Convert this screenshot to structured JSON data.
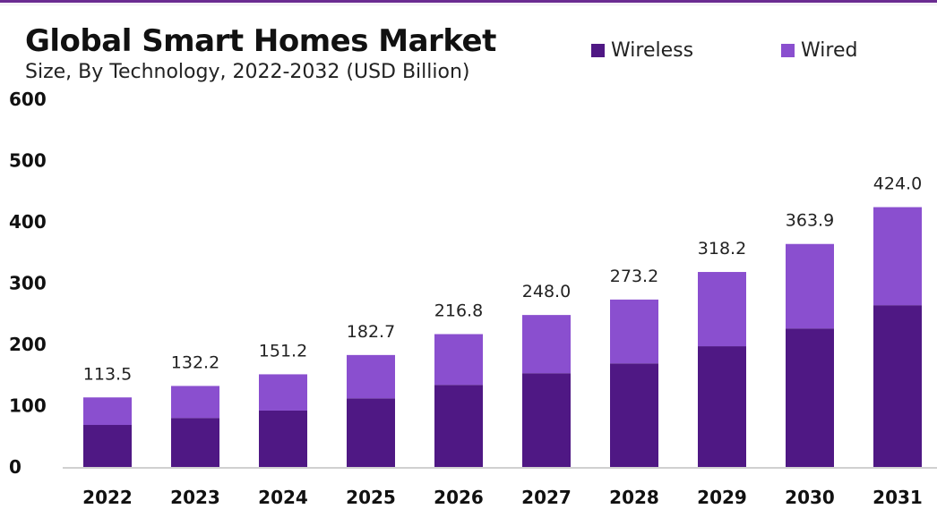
{
  "chart_data": {
    "type": "bar",
    "stacked": true,
    "title": "Global Smart Homes Market",
    "subtitle": "Size, By Technology, 2022-2032 (USD Billion)",
    "xlabel": "",
    "ylabel": "",
    "ylim": [
      0,
      600
    ],
    "yticks": [
      "0",
      "100",
      "200",
      "300",
      "400",
      "500",
      "600"
    ],
    "grid": false,
    "legend_position": "top-right",
    "categories": [
      "2022",
      "2023",
      "2024",
      "2025",
      "2026",
      "2027",
      "2028",
      "2029",
      "2030",
      "2031"
    ],
    "series": [
      {
        "name": "Wireless",
        "color": "#4f1884",
        "values": [
          68.6,
          80.0,
          92.0,
          112.0,
          134.0,
          153.0,
          169.0,
          197.0,
          226.0,
          264.0
        ]
      },
      {
        "name": "Wired",
        "color": "#8a4fcf",
        "values": [
          44.9,
          52.2,
          59.2,
          70.7,
          82.8,
          95.0,
          104.2,
          121.2,
          137.9,
          160.0
        ]
      }
    ],
    "totals": [
      113.5,
      132.2,
      151.2,
      182.7,
      216.8,
      248.0,
      273.2,
      318.2,
      363.9,
      424.0
    ],
    "total_labels": [
      "113.5",
      "132.2",
      "151.2",
      "182.7",
      "216.8",
      "248.0",
      "273.2",
      "318.2",
      "363.9",
      "424.0"
    ]
  }
}
